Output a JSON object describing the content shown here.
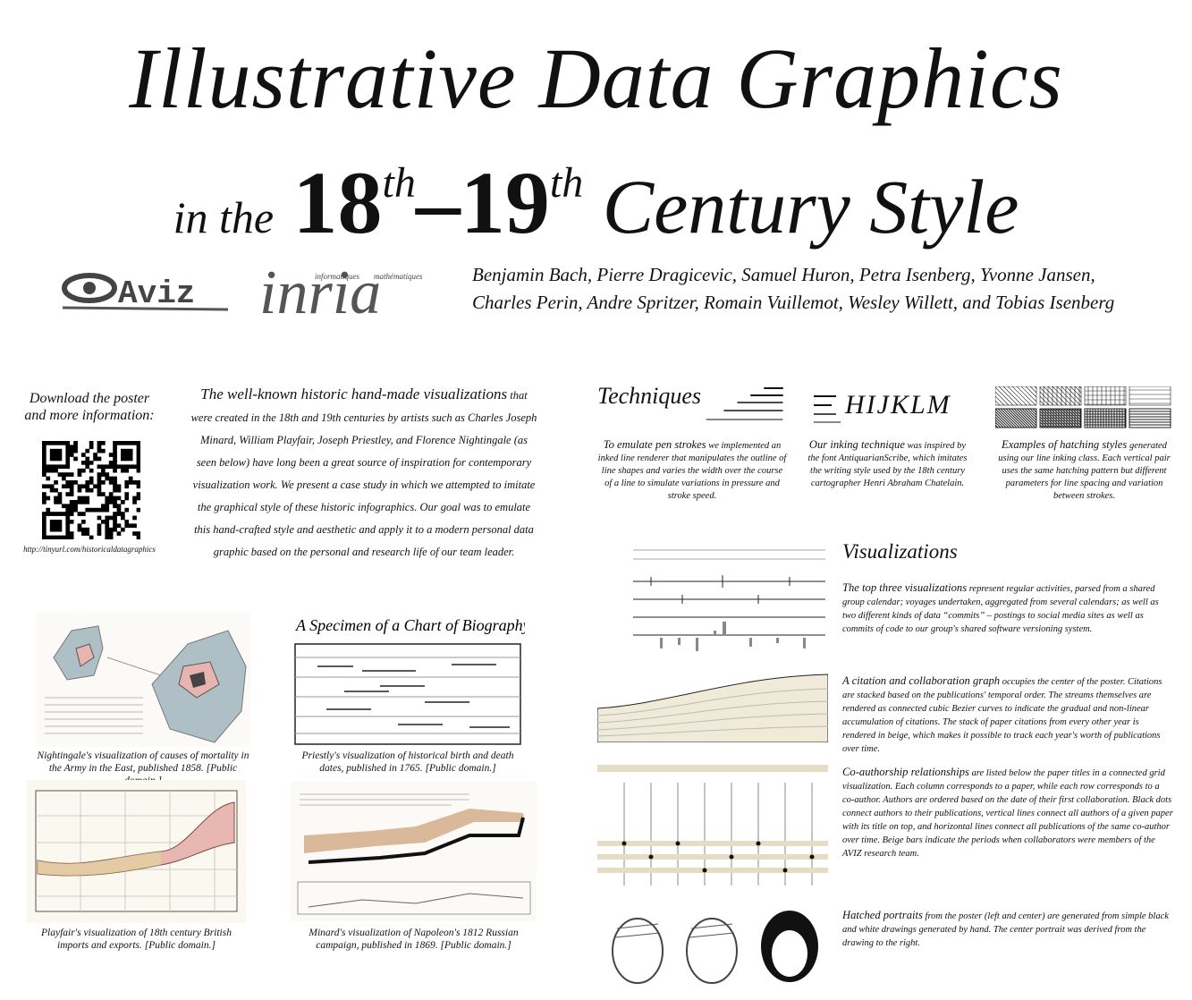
{
  "header": {
    "title_line1": "Illustrative Data Graphics",
    "title_line2": {
      "prefix": "in the",
      "from": "18",
      "from_sup": "th",
      "to": "–19",
      "to_sup": "th",
      "suffix": "Century Style"
    },
    "logos": {
      "aviz": "Aviz",
      "inria": "inria",
      "inria_sub": [
        "informatiques",
        "mathématiques"
      ]
    },
    "authors": [
      "Benjamin Bach, Pierre Dragicevic, Samuel Huron, Petra Isenberg, Yvonne Jansen,",
      "Charles Perin, Andre Spritzer, Romain Vuillemot, Wesley Willett, and Tobias Isenberg"
    ]
  },
  "download": {
    "heading": [
      "Download the poster",
      "and more information:"
    ],
    "url": "http://tinyurl.com/historicaldatagraphics"
  },
  "intro": {
    "lead": "The well-known historic hand-made visualizations",
    "body": "that were created in the 18th and 19th centuries by artists such as Charles Joseph Minard, William Playfair, Joseph Priestley, and Florence Nightingale (as seen below) have long been a great source of inspiration for contemporary visualization work. We present a case study in which we attempted to imitate the graphical style of these historic infographics. Our goal was to emulate this hand-crafted style and aesthetic and apply it to a modern personal data graphic based on the personal and research life of our team leader."
  },
  "figures": {
    "biography_title": "A Specimen of a Chart of Biography.",
    "captions": [
      "Nightingale's visualization of causes of mortality in the Army in the East, published 1858. [Public domain.]",
      "Priestly's visualization of historical birth and death dates, published in 1765. [Public domain.]",
      "Playfair's visualization of 18th century British imports and exports. [Public domain.]",
      "Minard's visualization of Napoleon's 1812 Russian campaign, published in 1869. [Public domain.]"
    ]
  },
  "techniques": {
    "heading": "Techniques",
    "font_sample": "HIJKLM",
    "items": [
      {
        "lead": "To emulate pen strokes",
        "body": "we implemented an inked line renderer that manipulates the outline of line shapes and varies the width over the course of a line to simulate variations in pressure and stroke speed."
      },
      {
        "lead": "Our inking technique",
        "body": "was inspired by the font AntiquarianScribe, which imitates the writing style used by the 18th century cartographer Henri Abraham Chatelain."
      },
      {
        "lead": "Examples of hatching styles",
        "body": "generated using our line inking class. Each vertical pair uses the same hatching pattern but different parameters for line spacing and variation between strokes."
      }
    ]
  },
  "visualizations": {
    "heading": "Visualizations",
    "items": [
      {
        "lead": "The top three visualizations",
        "body": "represent regular activities, parsed from a shared group calendar; voyages undertaken, aggregated from several calendars; as well as two different kinds of data “commits” – postings to social media sites as well as commits of code to our group's shared software versioning system."
      },
      {
        "lead": "A citation and collaboration graph",
        "body": "occupies the center of the poster. Citations are stacked based on the publications' temporal order. The streams themselves are rendered as connected cubic Bezier curves to indicate the gradual and non-linear accumulation of citations. The stack of paper citations from every other year is rendered in beige, which makes it possible to track each year's worth of publications over time."
      },
      {
        "lead": "Co-authorship relationships",
        "body": "are listed below the paper titles in a connected grid visualization. Each column corresponds to a paper, while each row corresponds to a co-author. Authors are ordered based on the date of their first collaboration. Black dots connect authors to their publications, vertical lines connect all authors of a given paper with its title on top, and horizontal lines connect all publications of the same co-author over time. Beige bars indicate the periods when collaborators were members of the AVIZ research team."
      },
      {
        "lead": "Hatched portraits",
        "body": "from the poster (left and center) are generated from simple black and white drawings generated by hand. The center portrait was derived from the drawing to the right."
      }
    ]
  }
}
